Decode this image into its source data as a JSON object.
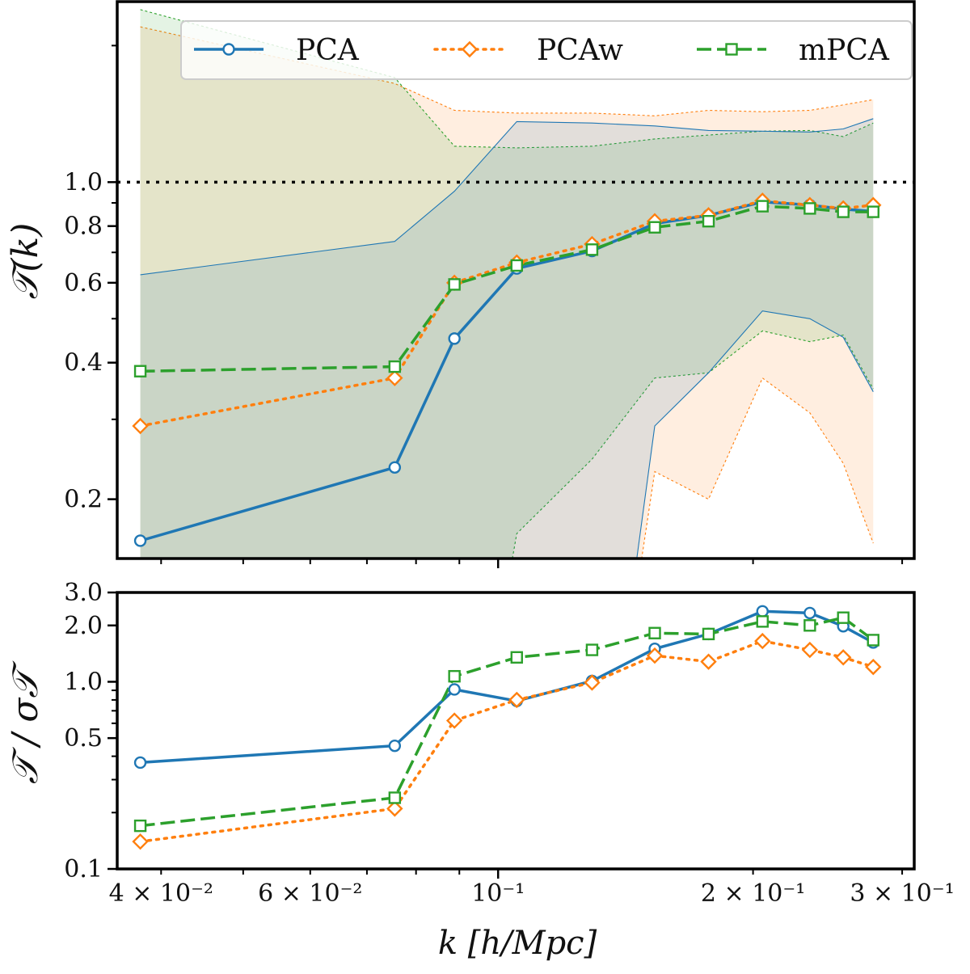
{
  "chart_data": [
    {
      "type": "line",
      "panel": "top",
      "xscale": "log",
      "yscale": "log",
      "ylabel": "𝒯(k)",
      "ylim": [
        0.148,
        2.5
      ],
      "yticks": [
        0.2,
        0.4,
        0.6,
        0.8,
        1.0
      ],
      "ytick_labels": [
        "0.2",
        "0.4",
        "0.6",
        "0.8",
        "1.0"
      ],
      "reference_line": {
        "y": 1.0,
        "style": "dotted",
        "color": "#000000"
      },
      "legend": {
        "placement": "top",
        "columns": 3
      },
      "x": [
        0.0378,
        0.0755,
        0.0888,
        0.1052,
        0.1291,
        0.1531,
        0.1772,
        0.2052,
        0.2334,
        0.2556,
        0.2773
      ],
      "series": [
        {
          "name": "PCA",
          "color": "#1f77b4",
          "marker": "circle",
          "linestyle": "solid",
          "values": [
            0.162,
            0.235,
            0.452,
            0.645,
            0.705,
            0.81,
            0.845,
            0.905,
            0.89,
            0.872,
            0.862
          ],
          "band_upper": [
            0.625,
            0.74,
            0.955,
            1.36,
            1.35,
            1.33,
            1.3,
            1.295,
            1.29,
            1.31,
            1.38
          ],
          "band_lower": [
            null,
            null,
            null,
            null,
            null,
            0.29,
            0.38,
            0.52,
            0.5,
            0.455,
            0.345
          ]
        },
        {
          "name": "PCAw",
          "color": "#ff7f0e",
          "marker": "diamond",
          "linestyle": "dotted",
          "values": [
            0.29,
            0.37,
            0.6,
            0.665,
            0.73,
            0.82,
            0.845,
            0.91,
            0.89,
            0.875,
            0.89
          ],
          "band_upper": [
            2.2,
            1.65,
            1.44,
            1.42,
            1.42,
            1.4,
            1.44,
            1.43,
            1.44,
            1.48,
            1.52
          ],
          "band_lower": [
            null,
            null,
            null,
            null,
            null,
            0.23,
            0.2,
            0.37,
            0.31,
            0.24,
            0.16
          ]
        },
        {
          "name": "mPCA",
          "color": "#2ca02c",
          "marker": "square",
          "linestyle": "dashed",
          "values": [
            0.383,
            0.392,
            0.595,
            0.655,
            0.71,
            0.795,
            0.82,
            0.885,
            0.875,
            0.86,
            0.86
          ],
          "band_upper": [
            2.4,
            1.7,
            1.2,
            1.19,
            1.2,
            1.245,
            1.27,
            1.295,
            1.3,
            1.26,
            1.35
          ],
          "band_lower": [
            null,
            null,
            null,
            0.168,
            0.245,
            0.37,
            0.38,
            0.47,
            0.445,
            0.46,
            0.35
          ]
        }
      ]
    },
    {
      "type": "line",
      "panel": "bottom",
      "xscale": "log",
      "yscale": "log",
      "ylabel": "𝒯 / σ𝒯",
      "xlabel": "k [h/Mpc]",
      "ylim": [
        0.1,
        3.0
      ],
      "yticks": [
        0.1,
        0.5,
        1.0,
        2.0,
        3.0
      ],
      "ytick_labels": [
        "0.1",
        "0.5",
        "1.0",
        "2.0",
        "3.0"
      ],
      "xlim": [
        0.0355,
        0.31
      ],
      "xticks": [
        0.04,
        0.06,
        0.1,
        0.2,
        0.3
      ],
      "xtick_labels": [
        "4 × 10⁻²",
        "6 × 10⁻²",
        "10⁻¹",
        "2 × 10⁻¹",
        "3 × 10⁻¹"
      ],
      "x": [
        0.0378,
        0.0755,
        0.0888,
        0.1052,
        0.1291,
        0.1531,
        0.1772,
        0.2052,
        0.2334,
        0.2556,
        0.2773
      ],
      "series": [
        {
          "name": "PCA",
          "color": "#1f77b4",
          "marker": "circle",
          "linestyle": "solid",
          "values": [
            0.37,
            0.455,
            0.91,
            0.79,
            1.01,
            1.5,
            1.8,
            2.38,
            2.33,
            1.98,
            1.62
          ]
        },
        {
          "name": "PCAw",
          "color": "#ff7f0e",
          "marker": "diamond",
          "linestyle": "dotted",
          "values": [
            0.14,
            0.21,
            0.62,
            0.8,
            0.99,
            1.38,
            1.28,
            1.65,
            1.48,
            1.35,
            1.2
          ]
        },
        {
          "name": "mPCA",
          "color": "#2ca02c",
          "marker": "square",
          "linestyle": "dashed",
          "values": [
            0.17,
            0.24,
            1.07,
            1.35,
            1.48,
            1.82,
            1.8,
            2.1,
            2.0,
            2.2,
            1.67
          ]
        }
      ]
    }
  ]
}
